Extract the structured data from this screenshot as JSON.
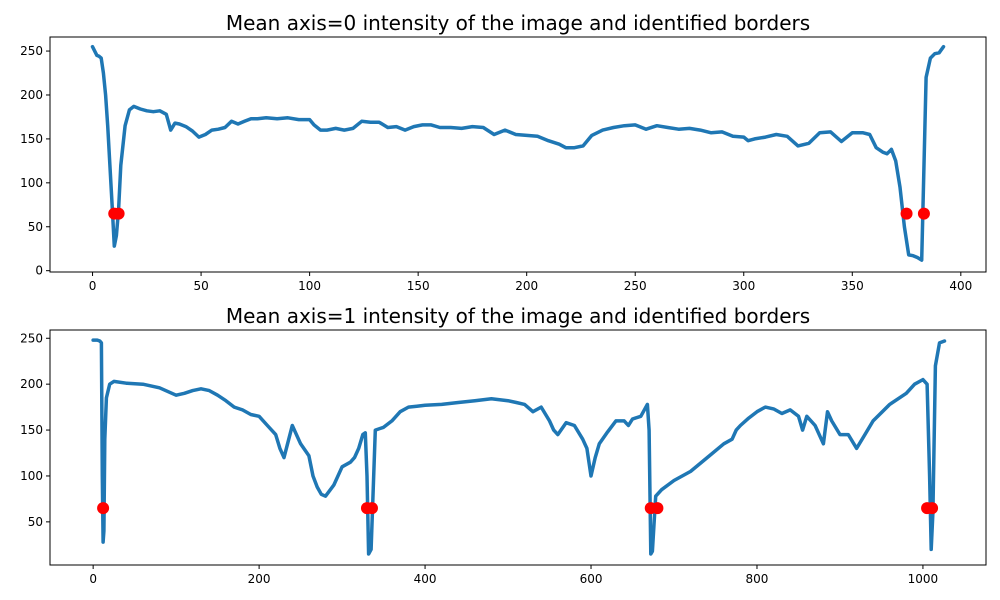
{
  "colors": {
    "line": "#1f77b4",
    "marker": "#ff0000",
    "axis": "#000000"
  },
  "chart_data": [
    {
      "type": "line",
      "title": "Mean axis=0 intensity of the image and identified borders",
      "xlabel": "",
      "ylabel": "",
      "xlim": [
        -19.6,
        411.6
      ],
      "ylim": [
        -1.5,
        266
      ],
      "xticks": [
        0,
        50,
        100,
        150,
        200,
        250,
        300,
        350,
        400
      ],
      "yticks": [
        0,
        50,
        100,
        150,
        200,
        250
      ],
      "grid": false,
      "series": [
        {
          "x": [
            0,
            2,
            3,
            4,
            5,
            6,
            7,
            8,
            9,
            10,
            11,
            12,
            13,
            15,
            17,
            19,
            22,
            25,
            28,
            31,
            34,
            36,
            38,
            40,
            43,
            46,
            49,
            52,
            55,
            58,
            61,
            64,
            67,
            70,
            73,
            76,
            80,
            85,
            90,
            95,
            100,
            102,
            105,
            108,
            112,
            116,
            120,
            124,
            128,
            132,
            136,
            140,
            144,
            148,
            152,
            156,
            160,
            165,
            170,
            175,
            180,
            185,
            190,
            195,
            200,
            205,
            210,
            215,
            218,
            222,
            226,
            230,
            235,
            240,
            245,
            250,
            255,
            260,
            265,
            270,
            275,
            280,
            285,
            290,
            295,
            300,
            302,
            305,
            310,
            315,
            320,
            325,
            330,
            335,
            340,
            345,
            350,
            355,
            358,
            361,
            364,
            366,
            368,
            370,
            372,
            374,
            376,
            378,
            380,
            382,
            384,
            386,
            388,
            390,
            392
          ],
          "y": [
            255,
            245,
            244,
            242,
            225,
            200,
            165,
            120,
            75,
            28,
            40,
            70,
            120,
            165,
            183,
            187,
            184,
            182,
            181,
            182,
            178,
            160,
            168,
            167,
            164,
            159,
            152,
            155,
            160,
            161,
            163,
            170,
            167,
            170,
            173,
            173,
            174,
            173,
            174,
            172,
            172,
            166,
            160,
            160,
            162,
            160,
            162,
            170,
            169,
            169,
            163,
            164,
            160,
            164,
            166,
            166,
            163,
            163,
            162,
            164,
            163,
            155,
            160,
            155,
            154,
            153,
            148,
            144,
            140,
            140,
            142,
            154,
            160,
            163,
            165,
            166,
            161,
            165,
            163,
            161,
            162,
            160,
            157,
            158,
            153,
            152,
            148,
            150,
            152,
            155,
            153,
            142,
            145,
            157,
            158,
            147,
            157,
            157,
            155,
            140,
            135,
            133,
            138,
            125,
            95,
            50,
            18,
            17,
            15,
            12,
            220,
            242,
            247,
            248,
            255
          ]
        }
      ],
      "markers": {
        "x": [
          10,
          12,
          375,
          383
        ],
        "y": [
          65,
          65,
          65,
          65
        ]
      }
    },
    {
      "type": "line",
      "title": "Mean axis=1 intensity of the image and identified borders",
      "xlabel": "",
      "ylabel": "",
      "xlim": [
        -52,
        1076
      ],
      "ylim": [
        3,
        259
      ],
      "xticks": [
        0,
        200,
        400,
        600,
        800,
        1000
      ],
      "yticks": [
        50,
        100,
        150,
        200,
        250
      ],
      "grid": false,
      "series": [
        {
          "x": [
            0,
            5,
            8,
            10,
            11,
            12,
            13,
            14,
            16,
            20,
            25,
            40,
            60,
            80,
            100,
            110,
            120,
            130,
            140,
            150,
            160,
            170,
            180,
            190,
            200,
            210,
            220,
            225,
            230,
            240,
            250,
            260,
            265,
            270,
            275,
            280,
            290,
            300,
            310,
            315,
            320,
            325,
            328,
            330,
            332,
            335,
            340,
            350,
            360,
            370,
            380,
            390,
            400,
            420,
            440,
            460,
            480,
            500,
            510,
            520,
            530,
            540,
            550,
            555,
            560,
            570,
            580,
            590,
            595,
            600,
            605,
            610,
            620,
            630,
            640,
            645,
            650,
            660,
            668,
            670,
            672,
            674,
            678,
            685,
            700,
            720,
            740,
            760,
            770,
            775,
            780,
            790,
            800,
            810,
            820,
            830,
            840,
            850,
            855,
            860,
            870,
            880,
            885,
            890,
            900,
            910,
            920,
            930,
            940,
            960,
            980,
            990,
            1000,
            1005,
            1008,
            1010,
            1012,
            1015,
            1020,
            1026
          ],
          "y": [
            248,
            248,
            247,
            245,
            100,
            28,
            40,
            140,
            185,
            200,
            203,
            201,
            200,
            196,
            188,
            190,
            193,
            195,
            193,
            188,
            182,
            175,
            172,
            167,
            165,
            155,
            145,
            130,
            120,
            155,
            135,
            122,
            100,
            88,
            80,
            78,
            90,
            110,
            115,
            120,
            130,
            145,
            147,
            100,
            15,
            20,
            150,
            153,
            160,
            170,
            175,
            176,
            177,
            178,
            180,
            182,
            184,
            182,
            180,
            178,
            170,
            175,
            160,
            150,
            145,
            158,
            155,
            140,
            130,
            100,
            120,
            135,
            148,
            160,
            160,
            155,
            162,
            165,
            178,
            150,
            15,
            18,
            78,
            85,
            95,
            105,
            120,
            135,
            140,
            150,
            155,
            163,
            170,
            175,
            173,
            168,
            172,
            165,
            150,
            165,
            155,
            135,
            170,
            160,
            145,
            145,
            130,
            145,
            160,
            178,
            190,
            200,
            205,
            200,
            100,
            20,
            60,
            220,
            245,
            247
          ]
        }
      ],
      "markers": {
        "x": [
          12,
          330,
          336,
          672,
          680,
          1005,
          1011
        ],
        "y": [
          65,
          65,
          65,
          65,
          65,
          65,
          65
        ]
      }
    }
  ]
}
